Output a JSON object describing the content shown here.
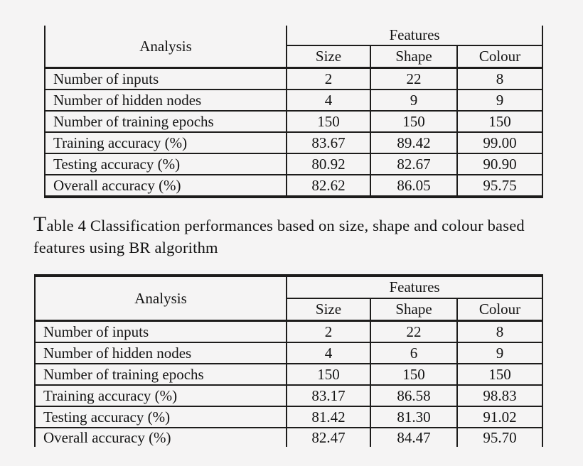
{
  "page": {
    "background_color": "#f5f4f4",
    "text_color": "#141414",
    "line_color": "#1d1c1b"
  },
  "table_top": {
    "header": {
      "analysis": "Analysis",
      "features": "Features",
      "sub_columns": [
        "Size",
        "Shape",
        "Colour"
      ]
    },
    "rows": [
      {
        "label": "Number of inputs",
        "values": [
          "2",
          "22",
          "8"
        ]
      },
      {
        "label": "Number of hidden nodes",
        "values": [
          "4",
          "9",
          "9"
        ]
      },
      {
        "label": "Number of training epochs",
        "values": [
          "150",
          "150",
          "150"
        ]
      },
      {
        "label": "Training accuracy (%)",
        "values": [
          "83.67",
          "89.42",
          "99.00"
        ]
      },
      {
        "label": "Testing accuracy (%)",
        "values": [
          "80.92",
          "82.67",
          "90.90"
        ]
      },
      {
        "label": "Overall accuracy (%)",
        "values": [
          "82.62",
          "86.05",
          "95.75"
        ]
      }
    ]
  },
  "caption": {
    "lead_cap": "T",
    "line1_rest": "able 4 Classification performances based on size, shape and colour based",
    "line2": "features using BR algorithm"
  },
  "table_bottom": {
    "header": {
      "analysis": "Analysis",
      "features": "Features",
      "sub_columns": [
        "Size",
        "Shape",
        "Colour"
      ]
    },
    "rows": [
      {
        "label": "Number of inputs",
        "values": [
          "2",
          "22",
          "8"
        ]
      },
      {
        "label": "Number of hidden nodes",
        "values": [
          "4",
          "6",
          "9"
        ]
      },
      {
        "label": "Number of training epochs",
        "values": [
          "150",
          "150",
          "150"
        ]
      },
      {
        "label": "Training accuracy (%)",
        "values": [
          "83.17",
          "86.58",
          "98.83"
        ]
      },
      {
        "label": "Testing accuracy (%)",
        "values": [
          "81.42",
          "81.30",
          "91.02"
        ]
      },
      {
        "label": "Overall accuracy (%)",
        "values": [
          "82.47",
          "84.47",
          "95.70"
        ]
      }
    ]
  }
}
